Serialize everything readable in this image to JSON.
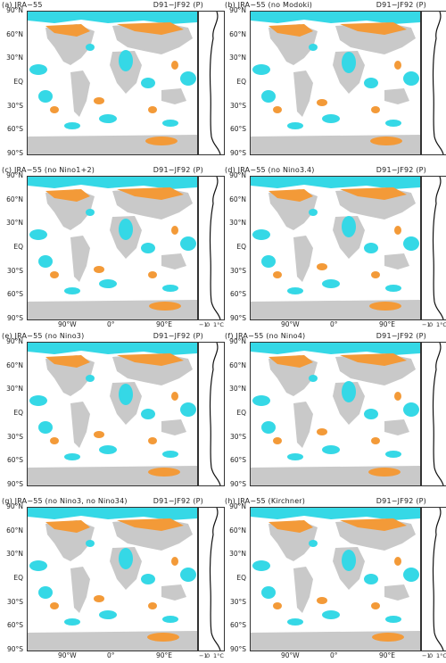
{
  "colors": {
    "cyan": "#35d8e6",
    "orange": "#f39a38",
    "gray": "#c9c9c9",
    "axis": "#333333"
  },
  "latitude_labels": [
    "90°N",
    "60°N",
    "30°N",
    "EQ",
    "30°S",
    "60°S",
    "90°S"
  ],
  "longitude_labels": [
    "90°W",
    "0°",
    "90°E"
  ],
  "side_axis_labels": [
    "−1",
    "0",
    "1°C"
  ],
  "panels": [
    {
      "left": "(a) JRA−55",
      "right": "D91−JF92 (P)"
    },
    {
      "left": "(b) JRA−55    (no Modoki)",
      "right": "D91−JF92 (P)"
    },
    {
      "left": "(c) JRA−55    (no Nino1+2)",
      "right": "D91−JF92 (P)"
    },
    {
      "left": "(d) JRA−55    (no Nino3.4)",
      "right": "D91−JF92 (P)"
    },
    {
      "left": "(e) JRA−55    (no Nino3)",
      "right": "D91−JF92 (P)"
    },
    {
      "left": "(f) JRA−55    (no Nino4)",
      "right": "D91−JF92 (P)"
    },
    {
      "left": "(g) JRA−55 (no Nino3, no Nino34)",
      "right": "D91−JF92 (P)"
    },
    {
      "left": "(h) JRA−55     (Kirchner)",
      "right": "D91−JF92 (P)"
    }
  ]
}
